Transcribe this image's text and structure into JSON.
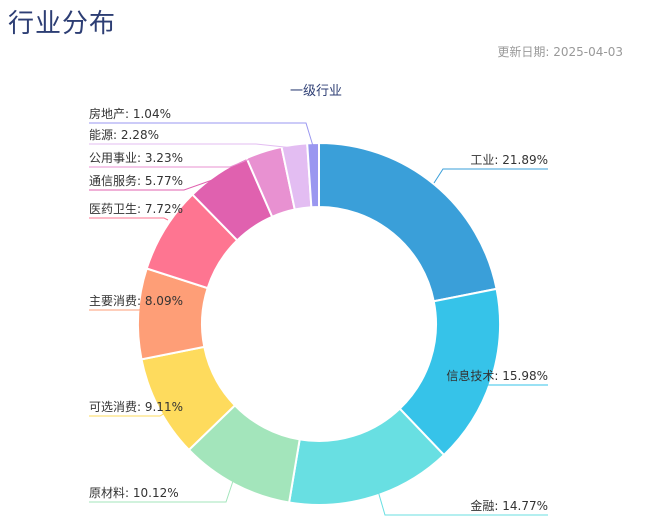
{
  "header": {
    "title": "行业分布",
    "update_label": "更新日期:",
    "update_date": "2025-04-03"
  },
  "chart_data": {
    "type": "pie",
    "donut": true,
    "title": "一级行业",
    "legend": "none",
    "label_separator": ": ",
    "slices": [
      {
        "label": "工业",
        "value": 21.89,
        "text": "21.89%",
        "color": "#3a9fd9"
      },
      {
        "label": "信息技术",
        "value": 15.98,
        "text": "15.98%",
        "color": "#36c3e9"
      },
      {
        "label": "金融",
        "value": 14.77,
        "text": "14.77%",
        "color": "#68dfe2"
      },
      {
        "label": "原材料",
        "value": 10.12,
        "text": "10.12%",
        "color": "#a3e5bb"
      },
      {
        "label": "可选消费",
        "value": 9.11,
        "text": "9.11%",
        "color": "#fedb5d"
      },
      {
        "label": "主要消费",
        "value": 8.09,
        "text": "8.09%",
        "color": "#fe9e77"
      },
      {
        "label": "医药卫生",
        "value": 7.72,
        "text": "7.72%",
        "color": "#fe7591"
      },
      {
        "label": "通信服务",
        "value": 5.77,
        "text": "5.77%",
        "color": "#e061af"
      },
      {
        "label": "公用事业",
        "value": 3.23,
        "text": "3.23%",
        "color": "#e891d1"
      },
      {
        "label": "能源",
        "value": 2.28,
        "text": "2.28%",
        "color": "#e3bdf2"
      },
      {
        "label": "房地产",
        "value": 1.04,
        "text": "1.04%",
        "color": "#9a97f0"
      }
    ]
  }
}
